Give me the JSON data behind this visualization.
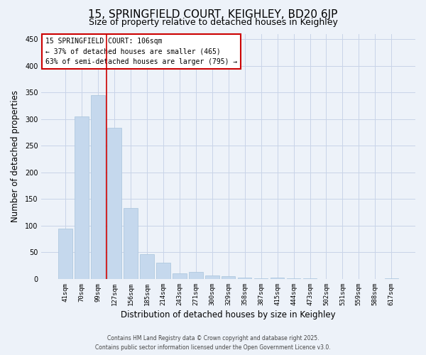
{
  "title": "15, SPRINGFIELD COURT, KEIGHLEY, BD20 6JP",
  "subtitle": "Size of property relative to detached houses in Keighley",
  "xlabel": "Distribution of detached houses by size in Keighley",
  "ylabel": "Number of detached properties",
  "bar_labels": [
    "41sqm",
    "70sqm",
    "99sqm",
    "127sqm",
    "156sqm",
    "185sqm",
    "214sqm",
    "243sqm",
    "271sqm",
    "300sqm",
    "329sqm",
    "358sqm",
    "387sqm",
    "415sqm",
    "444sqm",
    "473sqm",
    "502sqm",
    "531sqm",
    "559sqm",
    "588sqm",
    "617sqm"
  ],
  "bar_values": [
    95,
    305,
    345,
    283,
    133,
    47,
    30,
    10,
    13,
    7,
    5,
    2,
    1,
    2,
    1,
    1,
    0,
    0,
    0,
    0,
    1
  ],
  "bar_color": "#c5d8ed",
  "bar_edge_color": "#a8c4dc",
  "grid_color": "#c8d4e8",
  "background_color": "#edf2f9",
  "vline_color": "#cc0000",
  "vline_pos": 2.5,
  "ylim": [
    0,
    460
  ],
  "yticks": [
    0,
    50,
    100,
    150,
    200,
    250,
    300,
    350,
    400,
    450
  ],
  "annotation_box_text": "15 SPRINGFIELD COURT: 106sqm\n← 37% of detached houses are smaller (465)\n63% of semi-detached houses are larger (795) →",
  "footer_line1": "Contains HM Land Registry data © Crown copyright and database right 2025.",
  "footer_line2": "Contains public sector information licensed under the Open Government Licence v3.0.",
  "title_fontsize": 11,
  "subtitle_fontsize": 9,
  "tick_fontsize": 6.5,
  "label_fontsize": 8.5,
  "annot_fontsize": 7,
  "footer_fontsize": 5.5
}
